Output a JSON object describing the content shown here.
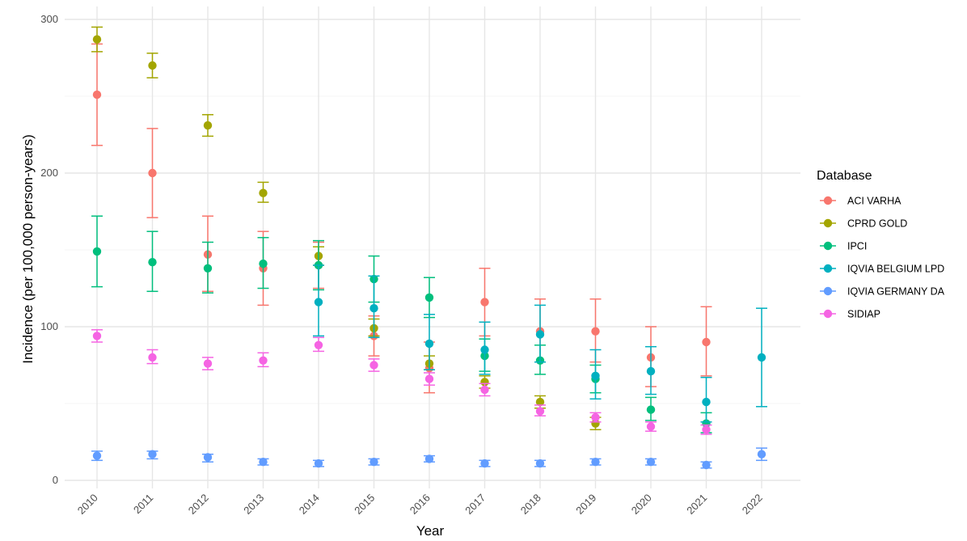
{
  "chart_data": {
    "type": "scatter",
    "xlabel": "Year",
    "ylabel": "Incidence (per 100,000 person-years)",
    "x": [
      "2010",
      "2011",
      "2012",
      "2013",
      "2014",
      "2015",
      "2016",
      "2017",
      "2018",
      "2019",
      "2020",
      "2021",
      "2022"
    ],
    "ylim": [
      0,
      310
    ],
    "y_ticks": [
      0,
      100,
      200,
      300
    ],
    "grid": true,
    "error_bars": true,
    "legend": {
      "title": "Database",
      "position": "right"
    },
    "series": [
      {
        "name": "ACI VARHA",
        "color": "#F8766D",
        "points": [
          {
            "x": "2010",
            "y": 251,
            "lo": 218,
            "hi": 284
          },
          {
            "x": "2011",
            "y": 200,
            "lo": 171,
            "hi": 229
          },
          {
            "x": "2012",
            "y": 147,
            "lo": 123,
            "hi": 172
          },
          {
            "x": "2013",
            "y": 138,
            "lo": 114,
            "hi": 162
          },
          {
            "x": "2014",
            "y": 140,
            "lo": 125,
            "hi": 155
          },
          {
            "x": "2015",
            "y": 94,
            "lo": 81,
            "hi": 107
          },
          {
            "x": "2016",
            "y": 73,
            "lo": 57,
            "hi": 90
          },
          {
            "x": "2017",
            "y": 116,
            "lo": 94,
            "hi": 138
          },
          {
            "x": "2018",
            "y": 97,
            "lo": 77,
            "hi": 118
          },
          {
            "x": "2019",
            "y": 97,
            "lo": 77,
            "hi": 118
          },
          {
            "x": "2020",
            "y": 80,
            "lo": 61,
            "hi": 100
          },
          {
            "x": "2021",
            "y": 90,
            "lo": 68,
            "hi": 113
          }
        ]
      },
      {
        "name": "CPRD GOLD",
        "color": "#A3A500",
        "points": [
          {
            "x": "2010",
            "y": 287,
            "lo": 279,
            "hi": 295
          },
          {
            "x": "2011",
            "y": 270,
            "lo": 262,
            "hi": 278
          },
          {
            "x": "2012",
            "y": 231,
            "lo": 224,
            "hi": 238
          },
          {
            "x": "2013",
            "y": 187,
            "lo": 181,
            "hi": 194
          },
          {
            "x": "2014",
            "y": 146,
            "lo": 140,
            "hi": 152
          },
          {
            "x": "2015",
            "y": 99,
            "lo": 94,
            "hi": 105
          },
          {
            "x": "2016",
            "y": 76,
            "lo": 72,
            "hi": 81
          },
          {
            "x": "2017",
            "y": 64,
            "lo": 60,
            "hi": 68
          },
          {
            "x": "2018",
            "y": 51,
            "lo": 47,
            "hi": 55
          },
          {
            "x": "2019",
            "y": 37,
            "lo": 33,
            "hi": 41
          }
        ]
      },
      {
        "name": "IPCI",
        "color": "#00BF7D",
        "points": [
          {
            "x": "2010",
            "y": 149,
            "lo": 126,
            "hi": 172
          },
          {
            "x": "2011",
            "y": 142,
            "lo": 123,
            "hi": 162
          },
          {
            "x": "2012",
            "y": 138,
            "lo": 122,
            "hi": 155
          },
          {
            "x": "2013",
            "y": 141,
            "lo": 125,
            "hi": 158
          },
          {
            "x": "2014",
            "y": 140,
            "lo": 124,
            "hi": 156
          },
          {
            "x": "2015",
            "y": 131,
            "lo": 116,
            "hi": 146
          },
          {
            "x": "2016",
            "y": 119,
            "lo": 106,
            "hi": 132
          },
          {
            "x": "2017",
            "y": 81,
            "lo": 71,
            "hi": 92
          },
          {
            "x": "2018",
            "y": 78,
            "lo": 69,
            "hi": 88
          },
          {
            "x": "2019",
            "y": 66,
            "lo": 57,
            "hi": 75
          },
          {
            "x": "2020",
            "y": 46,
            "lo": 39,
            "hi": 54
          },
          {
            "x": "2021",
            "y": 37,
            "lo": 31,
            "hi": 44
          }
        ]
      },
      {
        "name": "IQVIA BELGIUM LPD",
        "color": "#00B0C0",
        "points": [
          {
            "x": "2014",
            "y": 116,
            "lo": 94,
            "hi": 140
          },
          {
            "x": "2015",
            "y": 112,
            "lo": 93,
            "hi": 133
          },
          {
            "x": "2016",
            "y": 89,
            "lo": 72,
            "hi": 108
          },
          {
            "x": "2017",
            "y": 85,
            "lo": 69,
            "hi": 103
          },
          {
            "x": "2018",
            "y": 95,
            "lo": 77,
            "hi": 114
          },
          {
            "x": "2019",
            "y": 68,
            "lo": 53,
            "hi": 85
          },
          {
            "x": "2020",
            "y": 71,
            "lo": 56,
            "hi": 87
          },
          {
            "x": "2021",
            "y": 51,
            "lo": 38,
            "hi": 67
          },
          {
            "x": "2022",
            "y": 80,
            "lo": 48,
            "hi": 112
          }
        ]
      },
      {
        "name": "IQVIA GERMANY DA",
        "color": "#619CFF",
        "points": [
          {
            "x": "2010",
            "y": 16,
            "lo": 13,
            "hi": 19
          },
          {
            "x": "2011",
            "y": 17,
            "lo": 14,
            "hi": 19
          },
          {
            "x": "2012",
            "y": 15,
            "lo": 12,
            "hi": 17
          },
          {
            "x": "2013",
            "y": 12,
            "lo": 10,
            "hi": 14
          },
          {
            "x": "2014",
            "y": 11,
            "lo": 9,
            "hi": 13
          },
          {
            "x": "2015",
            "y": 12,
            "lo": 10,
            "hi": 14
          },
          {
            "x": "2016",
            "y": 14,
            "lo": 12,
            "hi": 16
          },
          {
            "x": "2017",
            "y": 11,
            "lo": 9,
            "hi": 13
          },
          {
            "x": "2018",
            "y": 11,
            "lo": 9,
            "hi": 13
          },
          {
            "x": "2019",
            "y": 12,
            "lo": 10,
            "hi": 14
          },
          {
            "x": "2020",
            "y": 12,
            "lo": 10,
            "hi": 14
          },
          {
            "x": "2021",
            "y": 10,
            "lo": 8,
            "hi": 12
          },
          {
            "x": "2022",
            "y": 17,
            "lo": 13,
            "hi": 21
          }
        ]
      },
      {
        "name": "SIDIAP",
        "color": "#F564E3",
        "points": [
          {
            "x": "2010",
            "y": 94,
            "lo": 90,
            "hi": 98
          },
          {
            "x": "2011",
            "y": 80,
            "lo": 76,
            "hi": 85
          },
          {
            "x": "2012",
            "y": 76,
            "lo": 72,
            "hi": 80
          },
          {
            "x": "2013",
            "y": 78,
            "lo": 74,
            "hi": 83
          },
          {
            "x": "2014",
            "y": 88,
            "lo": 84,
            "hi": 93
          },
          {
            "x": "2015",
            "y": 75,
            "lo": 71,
            "hi": 79
          },
          {
            "x": "2016",
            "y": 66,
            "lo": 62,
            "hi": 70
          },
          {
            "x": "2017",
            "y": 59,
            "lo": 55,
            "hi": 63
          },
          {
            "x": "2018",
            "y": 45,
            "lo": 42,
            "hi": 49
          },
          {
            "x": "2019",
            "y": 41,
            "lo": 38,
            "hi": 44
          },
          {
            "x": "2020",
            "y": 35,
            "lo": 32,
            "hi": 38
          },
          {
            "x": "2021",
            "y": 33,
            "lo": 30,
            "hi": 36
          }
        ]
      }
    ]
  }
}
